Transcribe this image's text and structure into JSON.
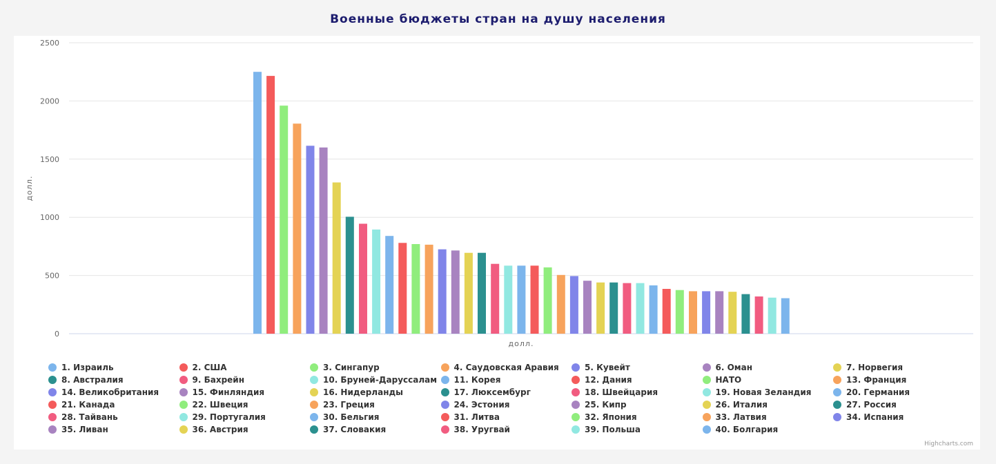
{
  "title": "Военные бюджеты стран на душу населения",
  "credits": "Highcharts.com",
  "colors": [
    "#7cb5ec",
    "#f45b5b",
    "#90ed7d",
    "#f7a35c",
    "#8085e9",
    "#a883c0",
    "#e4d354",
    "#2b908f",
    "#f15c80",
    "#91e8e1"
  ],
  "chart_data": {
    "type": "bar",
    "title": "Военные бюджеты стран на душу населения",
    "xlabel": "долл.",
    "ylabel": "долл.",
    "ylim": [
      0,
      2500
    ],
    "yticks": [
      0,
      500,
      1000,
      1500,
      2000,
      2500
    ],
    "grid": true,
    "legend": "bottom",
    "series": [
      {
        "name": "1. Израиль",
        "value": 2250
      },
      {
        "name": "2. США",
        "value": 2215
      },
      {
        "name": "3. Сингапур",
        "value": 1960
      },
      {
        "name": "4. Саудовская Аравия",
        "value": 1805
      },
      {
        "name": "5. Кувейт",
        "value": 1615
      },
      {
        "name": "6. Оман",
        "value": 1600
      },
      {
        "name": "7. Норвегия",
        "value": 1300
      },
      {
        "name": "8. Австралия",
        "value": 1005
      },
      {
        "name": "9. Бахрейн",
        "value": 945
      },
      {
        "name": "10. Бруней-Даруссалам",
        "value": 895
      },
      {
        "name": "11. Корея",
        "value": 840
      },
      {
        "name": "12. Дания",
        "value": 780
      },
      {
        "name": "НАТО",
        "value": 770
      },
      {
        "name": "13. Франция",
        "value": 765
      },
      {
        "name": "14. Великобритания",
        "value": 725
      },
      {
        "name": "15. Финляндия",
        "value": 715
      },
      {
        "name": "16. Нидерланды",
        "value": 695
      },
      {
        "name": "17. Люксембург",
        "value": 695
      },
      {
        "name": "18. Швейцария",
        "value": 600
      },
      {
        "name": "19. Новая Зеландия",
        "value": 585
      },
      {
        "name": "20. Германия",
        "value": 585
      },
      {
        "name": "21. Канада",
        "value": 585
      },
      {
        "name": "22. Швеция",
        "value": 570
      },
      {
        "name": "23. Греция",
        "value": 505
      },
      {
        "name": "24. Эстония",
        "value": 495
      },
      {
        "name": "25. Кипр",
        "value": 455
      },
      {
        "name": "26. Италия",
        "value": 440
      },
      {
        "name": "27. Россия",
        "value": 440
      },
      {
        "name": "28. Тайвань",
        "value": 435
      },
      {
        "name": "29. Португалия",
        "value": 435
      },
      {
        "name": "30. Бельгия",
        "value": 415
      },
      {
        "name": "31. Литва",
        "value": 385
      },
      {
        "name": "32. Япония",
        "value": 375
      },
      {
        "name": "33. Латвия",
        "value": 365
      },
      {
        "name": "34. Испания",
        "value": 365
      },
      {
        "name": "35. Ливан",
        "value": 365
      },
      {
        "name": "36. Австрия",
        "value": 360
      },
      {
        "name": "37. Словакия",
        "value": 340
      },
      {
        "name": "38. Уругвай",
        "value": 320
      },
      {
        "name": "39. Польша",
        "value": 310
      },
      {
        "name": "40. Болгария",
        "value": 305
      }
    ]
  }
}
